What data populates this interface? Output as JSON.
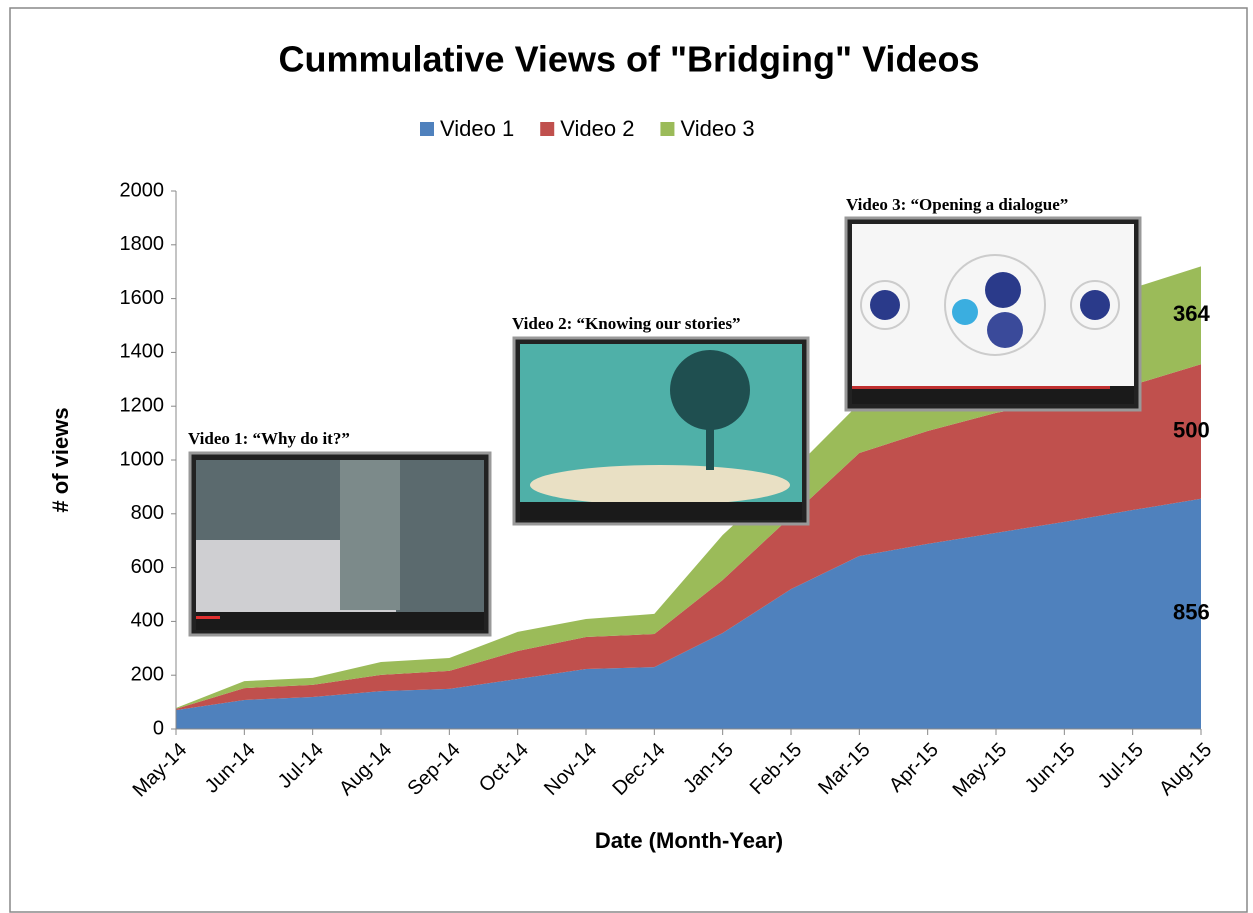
{
  "chart_data": {
    "type": "stacked_area",
    "title": "Cummulative Views of \"Bridging\" Videos",
    "xlabel": "Date (Month-Year)",
    "ylabel": "# of views",
    "categories": [
      "May-14",
      "Jun-14",
      "Jul-14",
      "Aug-14",
      "Sep-14",
      "Oct-14",
      "Nov-14",
      "Dec-14",
      "Jan-15",
      "Feb-15",
      "Mar-15",
      "Apr-15",
      "May-15",
      "Jun-15",
      "Jul-15",
      "Aug-15"
    ],
    "series": [
      {
        "name": "Video 1",
        "color": "#4f81bd",
        "values": [
          70,
          108,
          119,
          141,
          149,
          186,
          223,
          230,
          357,
          520,
          643,
          688,
          729,
          770,
          814,
          856
        ]
      },
      {
        "name": "Video 2",
        "color": "#c0504d",
        "values": [
          5,
          44,
          45,
          60,
          67,
          104,
          119,
          123,
          197,
          270,
          383,
          420,
          446,
          453,
          465,
          500
        ]
      },
      {
        "name": "Video 3",
        "color": "#9bbb59",
        "values": [
          3,
          26,
          26,
          48,
          48,
          71,
          67,
          75,
          167,
          165,
          184,
          200,
          260,
          320,
          360,
          364
        ]
      }
    ],
    "ylim": [
      0,
      2000
    ],
    "yticks": [
      0,
      200,
      400,
      600,
      800,
      1000,
      1200,
      1400,
      1600,
      1800,
      2000
    ],
    "legend": "top",
    "annotations": [
      "Video 1: “Why do it?”",
      "Video 2: “Knowing our stories”",
      "Video 3: “Opening a dialogue”"
    ]
  }
}
